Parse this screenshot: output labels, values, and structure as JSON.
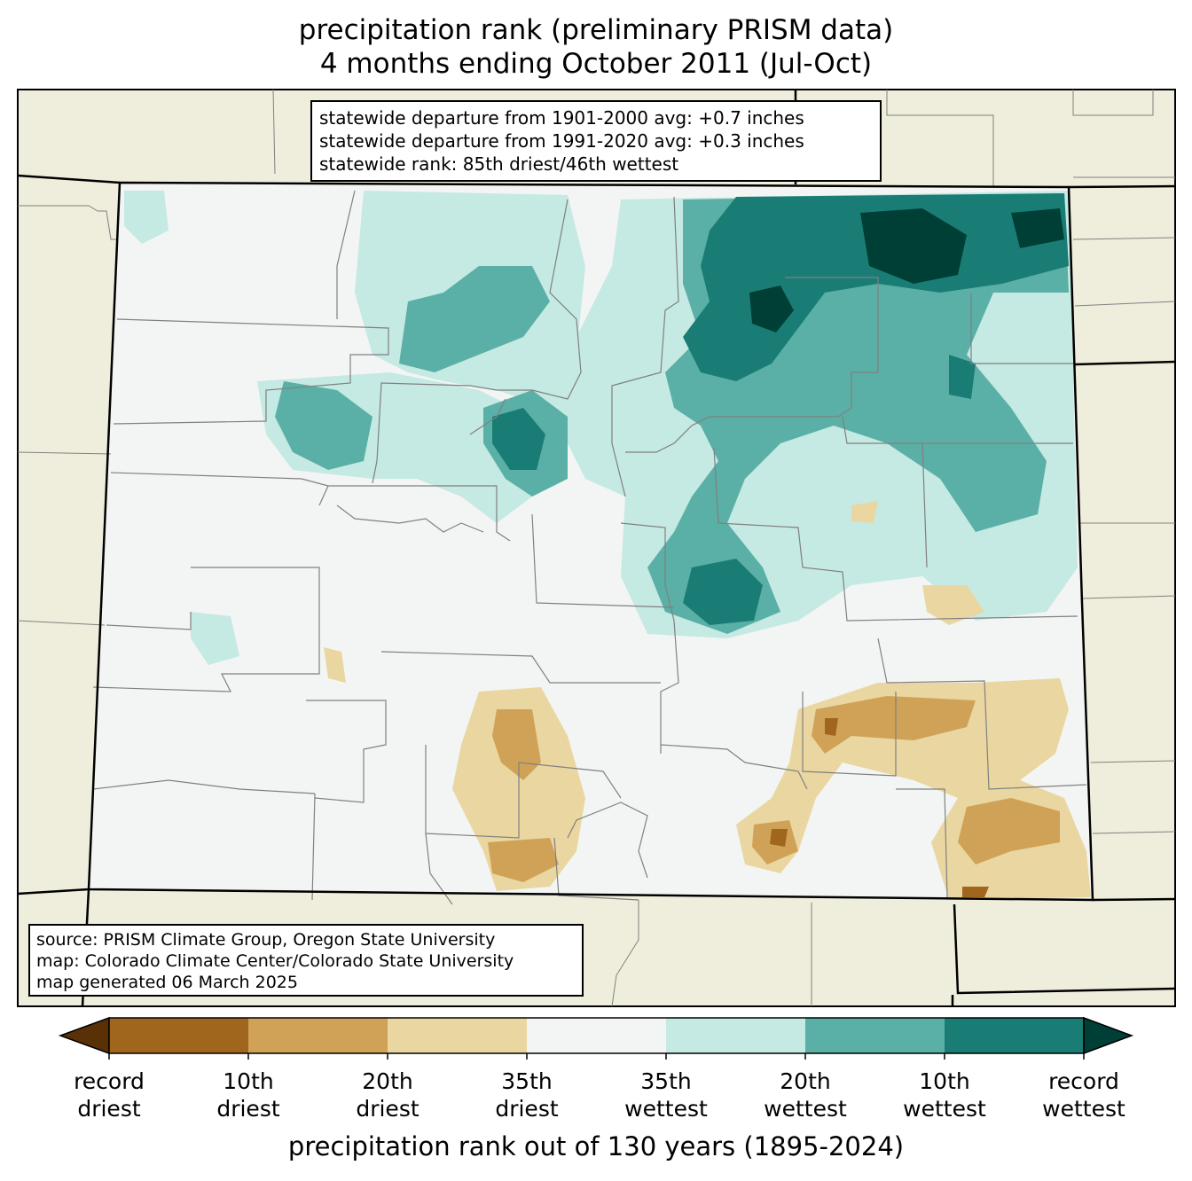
{
  "title": {
    "line1": "precipitation rank (preliminary PRISM data)",
    "line2": "4 months ending October 2011 (Jul-Oct)"
  },
  "stats_box": {
    "line1": "statewide departure from 1901-2000 avg: +0.7 inches",
    "line2": "statewide departure from 1991-2020 avg: +0.3 inches",
    "line3": "statewide rank: 85th driest/46th wettest"
  },
  "source_box": {
    "line1": "source: PRISM Climate Group, Oregon State University",
    "line2": "map: Colorado Climate Center/Colorado State University",
    "line3": "map generated 06 March 2025"
  },
  "colorbar": {
    "label": "precipitation rank out of 130 years (1895-2024)",
    "colors": [
      "#5a3006",
      "#a0661d",
      "#cfa257",
      "#ead6a0",
      "#f3f5f4",
      "#c5e9e3",
      "#5ab0a6",
      "#1a7d75",
      "#003f36"
    ],
    "ticks": [
      {
        "l1": "record",
        "l2": "driest"
      },
      {
        "l1": "10th",
        "l2": "driest"
      },
      {
        "l1": "20th",
        "l2": "driest"
      },
      {
        "l1": "35th",
        "l2": "driest"
      },
      {
        "l1": "35th",
        "l2": "wettest"
      },
      {
        "l1": "20th",
        "l2": "wettest"
      },
      {
        "l1": "10th",
        "l2": "wettest"
      },
      {
        "l1": "record",
        "l2": "wettest"
      }
    ]
  },
  "map_colors": {
    "land": "#efeedc",
    "state_fill": "#f3f5f4",
    "county_line": "#808080",
    "border": "#000000"
  }
}
